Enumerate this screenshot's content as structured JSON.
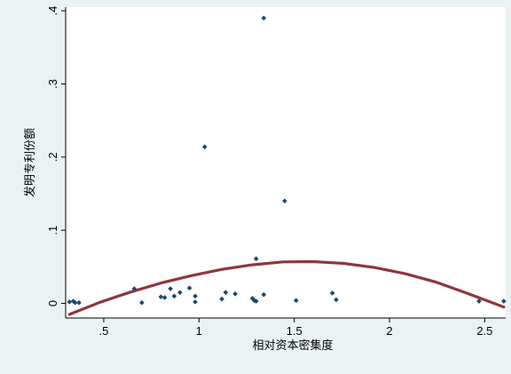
{
  "chart_data": {
    "type": "scatter",
    "title": "",
    "xlabel": "相对资本密集度",
    "ylabel": "发明专利份额",
    "xlim": [
      0.3,
      2.61
    ],
    "ylim": [
      -0.02,
      0.405
    ],
    "x_ticks": [
      0.5,
      1,
      1.5,
      2,
      2.5
    ],
    "x_tick_labels": [
      ".5",
      "1",
      "1.5",
      "2",
      "2.5"
    ],
    "y_ticks": [
      0,
      0.1,
      0.2,
      0.3,
      0.4
    ],
    "y_tick_labels": [
      "0",
      ".1",
      ".2",
      ".3",
      ".4"
    ],
    "grid": false,
    "legend": "none",
    "colors": {
      "frame_background": "#eaf2f3",
      "plot_background": "#ffffff",
      "points": "#1a476f",
      "fit_line": "#90353b"
    },
    "series": [
      {
        "type": "scatter",
        "x": [
          0.32,
          0.34,
          0.35,
          0.37,
          0.66,
          0.7,
          0.8,
          0.82,
          0.85,
          0.87,
          0.9,
          0.95,
          0.98,
          0.98,
          1.03,
          1.12,
          1.14,
          1.19,
          1.28,
          1.29,
          1.3,
          1.3,
          1.34,
          1.34,
          1.45,
          1.51,
          1.7,
          1.72,
          2.47,
          2.6
        ],
        "y": [
          0.002,
          0.003,
          0.001,
          0.001,
          0.02,
          0.001,
          0.009,
          0.008,
          0.02,
          0.01,
          0.015,
          0.021,
          0.01,
          0.002,
          0.214,
          0.006,
          0.015,
          0.013,
          0.007,
          0.004,
          0.003,
          0.061,
          0.012,
          0.39,
          0.14,
          0.004,
          0.014,
          0.005,
          0.003,
          0.003
        ]
      },
      {
        "type": "line",
        "x": [
          0.32,
          0.48,
          0.64,
          0.8,
          0.96,
          1.12,
          1.28,
          1.44,
          1.6,
          1.76,
          1.92,
          2.08,
          2.24,
          2.4,
          2.6
        ],
        "y": [
          -0.015,
          0.0015,
          0.0155,
          0.0279,
          0.0379,
          0.0466,
          0.0527,
          0.0568,
          0.0571,
          0.0547,
          0.0491,
          0.0408,
          0.0294,
          0.0146,
          -0.005
        ]
      }
    ]
  }
}
